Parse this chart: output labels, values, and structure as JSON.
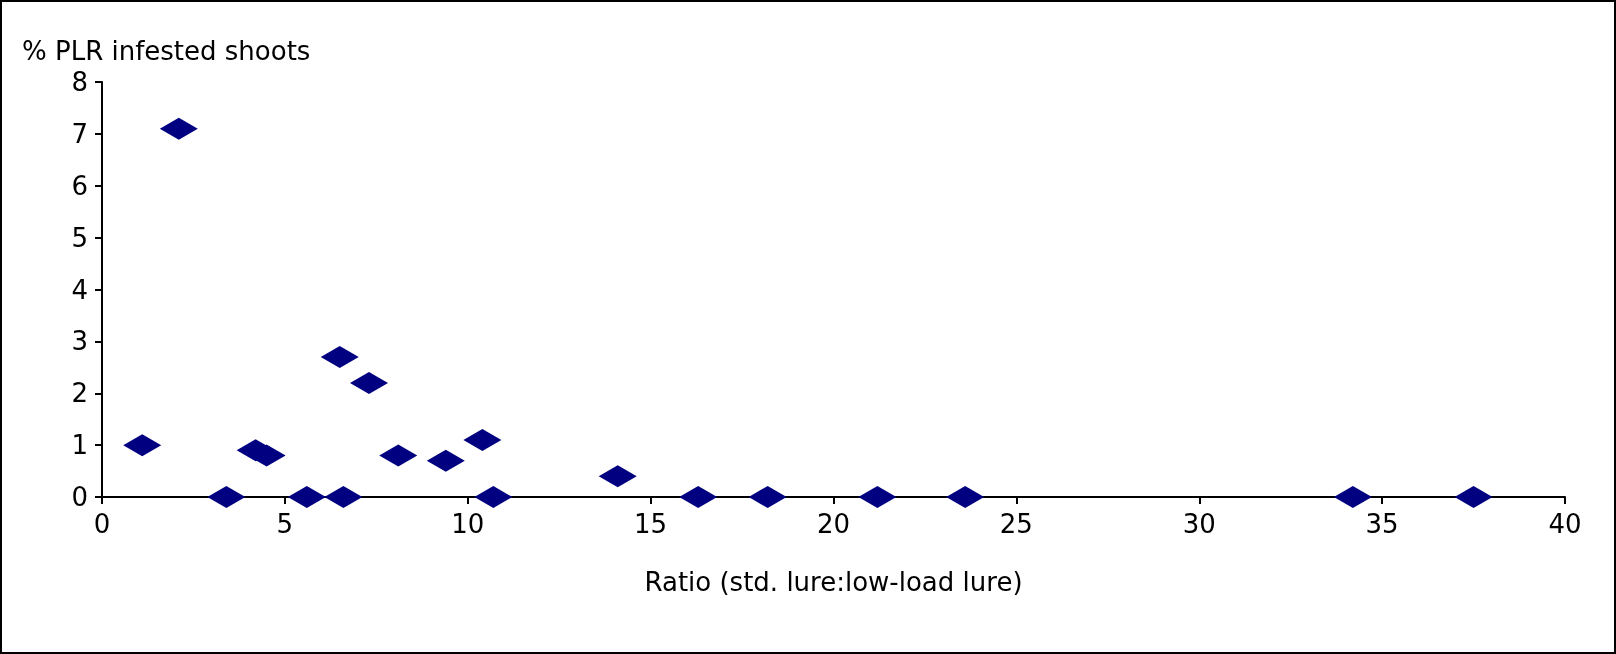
{
  "chart_data": {
    "type": "scatter",
    "xlabel": "Ratio (std. lure:low-load lure)",
    "ylabel": "% PLR infested shoots",
    "x": [
      1.1,
      2.1,
      3.4,
      4.2,
      4.5,
      5.6,
      6.5,
      6.6,
      7.3,
      8.1,
      9.4,
      10.4,
      10.7,
      14.1,
      16.3,
      18.2,
      21.2,
      23.6,
      34.2,
      37.5
    ],
    "series": [
      {
        "color": "#000080",
        "values": [
          1.0,
          7.1,
          0,
          0.9,
          0.8,
          0,
          2.7,
          0,
          2.2,
          0.8,
          0.7,
          1.1,
          0,
          0.4,
          0,
          0,
          0,
          0,
          0,
          0
        ]
      }
    ],
    "xlim": [
      0,
      40
    ],
    "xticks": [
      0,
      5,
      10,
      15,
      20,
      25,
      30,
      35,
      40
    ],
    "ylim": [
      0,
      8
    ],
    "yticks": [
      0,
      1,
      2,
      3,
      4,
      5,
      6,
      7,
      8
    ],
    "grid": false,
    "marker": "diamond"
  }
}
